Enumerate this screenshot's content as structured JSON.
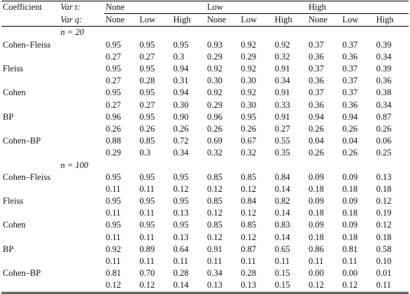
{
  "header": {
    "coefficient": "Coefficient",
    "var_t": "Var t:",
    "var_q": "Var q:",
    "groups": [
      "None",
      "Low",
      "High"
    ],
    "subcolumns": [
      "None",
      "Low",
      "High",
      "None",
      "Low",
      "High",
      "None",
      "Low",
      "High"
    ]
  },
  "sections": [
    {
      "label": "n = 20",
      "rows": [
        {
          "name": "Cohen–Fleiss",
          "values": [
            [
              "0.95",
              "0.95",
              "0.95",
              "0.93",
              "0.92",
              "0.92",
              "0.37",
              "0.37",
              "0.39"
            ],
            [
              "0.27",
              "0.27",
              "0.3",
              "0.29",
              "0.29",
              "0.32",
              "0.36",
              "0.36",
              "0.34"
            ]
          ]
        },
        {
          "name": "Fleiss",
          "values": [
            [
              "0.95",
              "0.95",
              "0.94",
              "0.92",
              "0.92",
              "0.91",
              "0.37",
              "0.37",
              "0.39"
            ],
            [
              "0.27",
              "0.28",
              "0.31",
              "0.30",
              "0.30",
              "0.34",
              "0.36",
              "0.37",
              "0.36"
            ]
          ]
        },
        {
          "name": "Cohen",
          "values": [
            [
              "0.95",
              "0.95",
              "0.94",
              "0.92",
              "0.92",
              "0.91",
              "0.37",
              "0.37",
              "0.38"
            ],
            [
              "0.27",
              "0.27",
              "0.30",
              "0.29",
              "0.30",
              "0.33",
              "0.36",
              "0.36",
              "0.34"
            ]
          ]
        },
        {
          "name": "BP",
          "values": [
            [
              "0.96",
              "0.95",
              "0.90",
              "0.96",
              "0.95",
              "0.91",
              "0.94",
              "0.94",
              "0.87"
            ],
            [
              "0.26",
              "0.26",
              "0.26",
              "0.26",
              "0.26",
              "0.27",
              "0.26",
              "0.26",
              "0.26"
            ]
          ]
        },
        {
          "name": "Cohen–BP",
          "values": [
            [
              "0.88",
              "0.85",
              "0.72",
              "0.69",
              "0.67",
              "0.55",
              "0.04",
              "0.04",
              "0.06"
            ],
            [
              "0.29",
              "0.3",
              "0.34",
              "0.32",
              "0.32",
              "0.35",
              "0.26",
              "0.26",
              "0.25"
            ]
          ]
        }
      ]
    },
    {
      "label": "n = 100",
      "rows": [
        {
          "name": "Cohen–Fleiss",
          "values": [
            [
              "0.95",
              "0.95",
              "0.95",
              "0.85",
              "0.85",
              "0.84",
              "0.09",
              "0.09",
              "0.13"
            ],
            [
              "0.11",
              "0.11",
              "0.12",
              "0.12",
              "0.12",
              "0.14",
              "0.18",
              "0.18",
              "0.18"
            ]
          ]
        },
        {
          "name": "Fleiss",
          "values": [
            [
              "0.95",
              "0.95",
              "0.95",
              "0.85",
              "0.84",
              "0.82",
              "0.09",
              "0.09",
              "0.12"
            ],
            [
              "0.11",
              "0.11",
              "0.13",
              "0.12",
              "0.12",
              "0.14",
              "0.18",
              "0.18",
              "0.19"
            ]
          ]
        },
        {
          "name": "Cohen",
          "values": [
            [
              "0.95",
              "0.95",
              "0.95",
              "0.85",
              "0.85",
              "0.83",
              "0.09",
              "0.09",
              "0.12"
            ],
            [
              "0.11",
              "0.11",
              "0.13",
              "0.12",
              "0.12",
              "0.14",
              "0.18",
              "0.18",
              "0.18"
            ]
          ]
        },
        {
          "name": "BP",
          "values": [
            [
              "0.92",
              "0.89",
              "0.64",
              "0.91",
              "0.87",
              "0.65",
              "0.86",
              "0.81",
              "0.58"
            ],
            [
              "0.11",
              "0.11",
              "0.11",
              "0.11",
              "0.11",
              "0.11",
              "0.11",
              "0.11",
              "0.10"
            ]
          ]
        },
        {
          "name": "Cohen–BP",
          "values": [
            [
              "0.81",
              "0.70",
              "0.28",
              "0.34",
              "0.28",
              "0.15",
              "0.00",
              "0.00",
              "0.01"
            ],
            [
              "0.12",
              "0.12",
              "0.14",
              "0.13",
              "0.13",
              "0.15",
              "0.12",
              "0.12",
              "0.11"
            ]
          ]
        }
      ]
    }
  ]
}
